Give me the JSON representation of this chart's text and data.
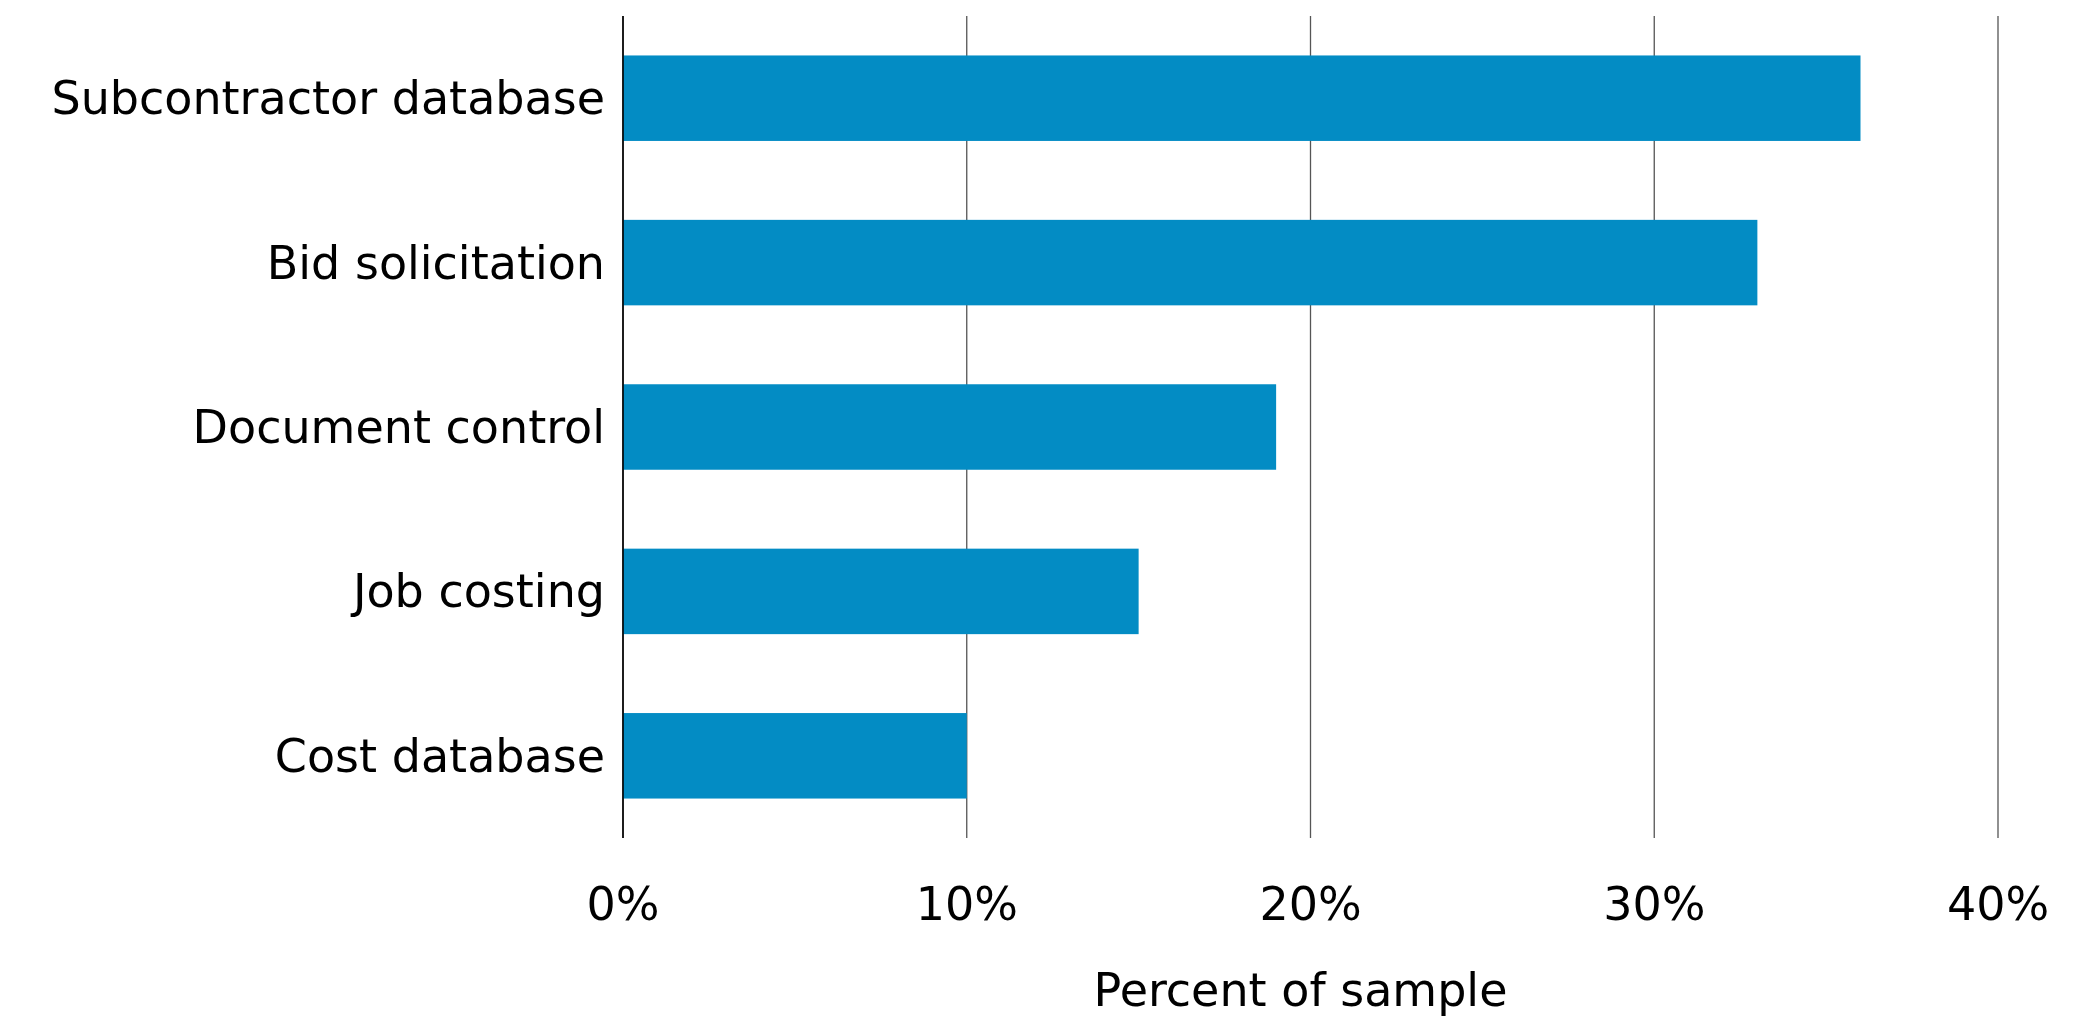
{
  "chart_data": {
    "type": "bar",
    "orientation": "horizontal",
    "xlabel": "Percent of sample",
    "categories": [
      "Subcontractor database",
      "Bid solicitation",
      "Document control",
      "Job costing",
      "Cost database"
    ],
    "values": [
      36,
      33,
      19,
      15,
      10
    ],
    "color": "#038cc4",
    "xlim": [
      0,
      40
    ],
    "xticks": [
      {
        "value": 0,
        "label": "0%"
      },
      {
        "value": 10,
        "label": "10%"
      },
      {
        "value": 20,
        "label": "20%"
      },
      {
        "value": 30,
        "label": "30%"
      },
      {
        "value": 40,
        "label": "40%"
      }
    ],
    "grid": "x"
  }
}
